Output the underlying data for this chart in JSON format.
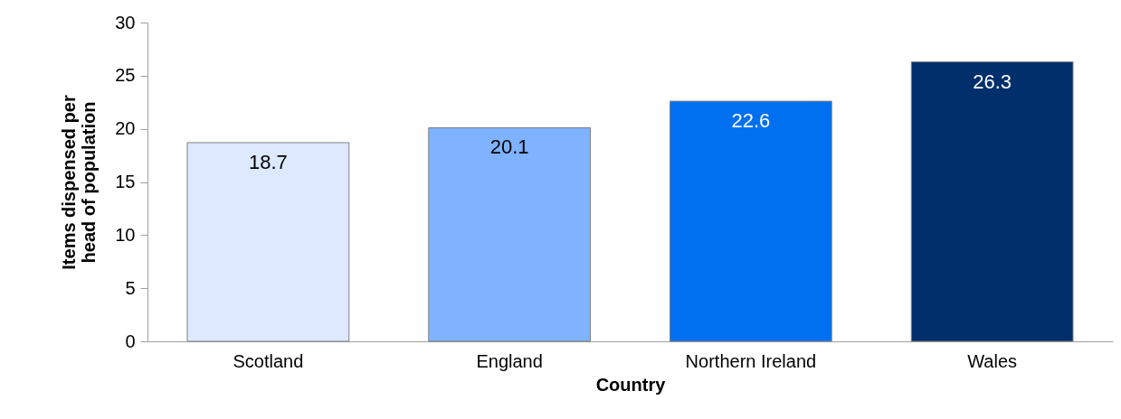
{
  "chart_data": {
    "type": "bar",
    "xlabel": "Country",
    "ylabel": "Items dispensed per head of population",
    "categories": [
      "Scotland",
      "England",
      "Northern Ireland",
      "Wales"
    ],
    "values": [
      18.7,
      20.1,
      22.6,
      26.3
    ],
    "colors": [
      "#dce9ff",
      "#7fb2ff",
      "#0070f0",
      "#002f6c"
    ],
    "ylim": [
      0,
      30
    ],
    "yticks": [
      0,
      5,
      10,
      15,
      20,
      25,
      30
    ],
    "grid": false,
    "data_labels": true
  }
}
